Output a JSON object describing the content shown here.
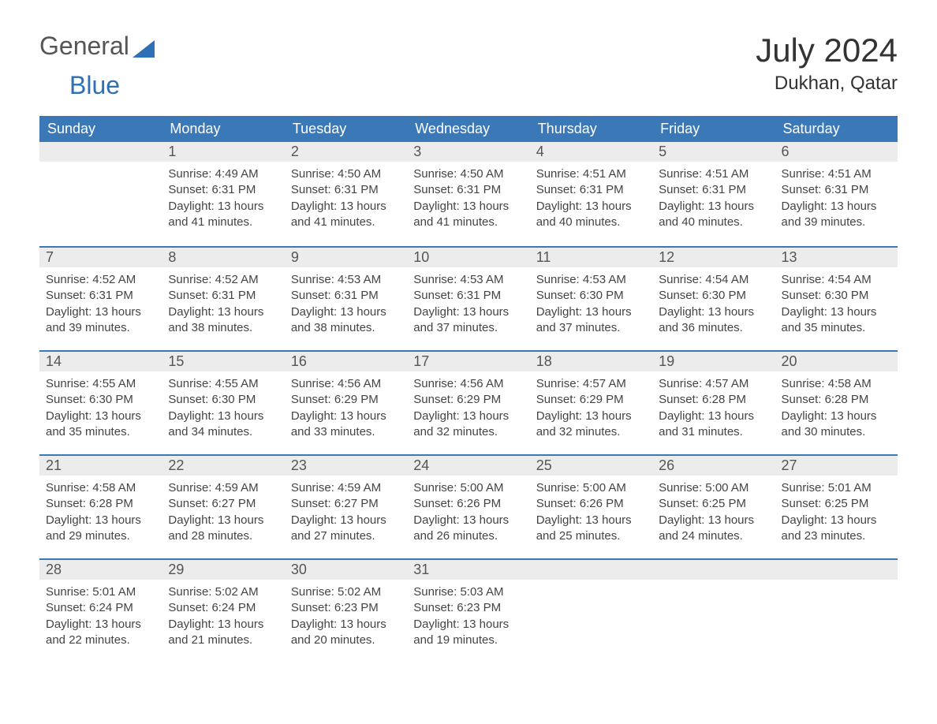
{
  "logo": {
    "text1": "General",
    "text2": "Blue"
  },
  "title": "July 2024",
  "location": "Dukhan, Qatar",
  "colors": {
    "header_bg": "#3b78b8",
    "header_text": "#ffffff",
    "daybar_bg": "#ececec",
    "daybar_border": "#3b78b8",
    "body_text": "#444444",
    "title_text": "#333333",
    "logo_general": "#555555",
    "logo_blue": "#2f6fb3"
  },
  "weekdays": [
    "Sunday",
    "Monday",
    "Tuesday",
    "Wednesday",
    "Thursday",
    "Friday",
    "Saturday"
  ],
  "grid": {
    "start_offset": 1,
    "days": [
      {
        "n": 1,
        "sunrise": "4:49 AM",
        "sunset": "6:31 PM",
        "daylight": "13 hours and 41 minutes."
      },
      {
        "n": 2,
        "sunrise": "4:50 AM",
        "sunset": "6:31 PM",
        "daylight": "13 hours and 41 minutes."
      },
      {
        "n": 3,
        "sunrise": "4:50 AM",
        "sunset": "6:31 PM",
        "daylight": "13 hours and 41 minutes."
      },
      {
        "n": 4,
        "sunrise": "4:51 AM",
        "sunset": "6:31 PM",
        "daylight": "13 hours and 40 minutes."
      },
      {
        "n": 5,
        "sunrise": "4:51 AM",
        "sunset": "6:31 PM",
        "daylight": "13 hours and 40 minutes."
      },
      {
        "n": 6,
        "sunrise": "4:51 AM",
        "sunset": "6:31 PM",
        "daylight": "13 hours and 39 minutes."
      },
      {
        "n": 7,
        "sunrise": "4:52 AM",
        "sunset": "6:31 PM",
        "daylight": "13 hours and 39 minutes."
      },
      {
        "n": 8,
        "sunrise": "4:52 AM",
        "sunset": "6:31 PM",
        "daylight": "13 hours and 38 minutes."
      },
      {
        "n": 9,
        "sunrise": "4:53 AM",
        "sunset": "6:31 PM",
        "daylight": "13 hours and 38 minutes."
      },
      {
        "n": 10,
        "sunrise": "4:53 AM",
        "sunset": "6:31 PM",
        "daylight": "13 hours and 37 minutes."
      },
      {
        "n": 11,
        "sunrise": "4:53 AM",
        "sunset": "6:30 PM",
        "daylight": "13 hours and 37 minutes."
      },
      {
        "n": 12,
        "sunrise": "4:54 AM",
        "sunset": "6:30 PM",
        "daylight": "13 hours and 36 minutes."
      },
      {
        "n": 13,
        "sunrise": "4:54 AM",
        "sunset": "6:30 PM",
        "daylight": "13 hours and 35 minutes."
      },
      {
        "n": 14,
        "sunrise": "4:55 AM",
        "sunset": "6:30 PM",
        "daylight": "13 hours and 35 minutes."
      },
      {
        "n": 15,
        "sunrise": "4:55 AM",
        "sunset": "6:30 PM",
        "daylight": "13 hours and 34 minutes."
      },
      {
        "n": 16,
        "sunrise": "4:56 AM",
        "sunset": "6:29 PM",
        "daylight": "13 hours and 33 minutes."
      },
      {
        "n": 17,
        "sunrise": "4:56 AM",
        "sunset": "6:29 PM",
        "daylight": "13 hours and 32 minutes."
      },
      {
        "n": 18,
        "sunrise": "4:57 AM",
        "sunset": "6:29 PM",
        "daylight": "13 hours and 32 minutes."
      },
      {
        "n": 19,
        "sunrise": "4:57 AM",
        "sunset": "6:28 PM",
        "daylight": "13 hours and 31 minutes."
      },
      {
        "n": 20,
        "sunrise": "4:58 AM",
        "sunset": "6:28 PM",
        "daylight": "13 hours and 30 minutes."
      },
      {
        "n": 21,
        "sunrise": "4:58 AM",
        "sunset": "6:28 PM",
        "daylight": "13 hours and 29 minutes."
      },
      {
        "n": 22,
        "sunrise": "4:59 AM",
        "sunset": "6:27 PM",
        "daylight": "13 hours and 28 minutes."
      },
      {
        "n": 23,
        "sunrise": "4:59 AM",
        "sunset": "6:27 PM",
        "daylight": "13 hours and 27 minutes."
      },
      {
        "n": 24,
        "sunrise": "5:00 AM",
        "sunset": "6:26 PM",
        "daylight": "13 hours and 26 minutes."
      },
      {
        "n": 25,
        "sunrise": "5:00 AM",
        "sunset": "6:26 PM",
        "daylight": "13 hours and 25 minutes."
      },
      {
        "n": 26,
        "sunrise": "5:00 AM",
        "sunset": "6:25 PM",
        "daylight": "13 hours and 24 minutes."
      },
      {
        "n": 27,
        "sunrise": "5:01 AM",
        "sunset": "6:25 PM",
        "daylight": "13 hours and 23 minutes."
      },
      {
        "n": 28,
        "sunrise": "5:01 AM",
        "sunset": "6:24 PM",
        "daylight": "13 hours and 22 minutes."
      },
      {
        "n": 29,
        "sunrise": "5:02 AM",
        "sunset": "6:24 PM",
        "daylight": "13 hours and 21 minutes."
      },
      {
        "n": 30,
        "sunrise": "5:02 AM",
        "sunset": "6:23 PM",
        "daylight": "13 hours and 20 minutes."
      },
      {
        "n": 31,
        "sunrise": "5:03 AM",
        "sunset": "6:23 PM",
        "daylight": "13 hours and 19 minutes."
      }
    ]
  },
  "labels": {
    "sunrise_prefix": "Sunrise: ",
    "sunset_prefix": "Sunset: ",
    "daylight_prefix": "Daylight: "
  }
}
